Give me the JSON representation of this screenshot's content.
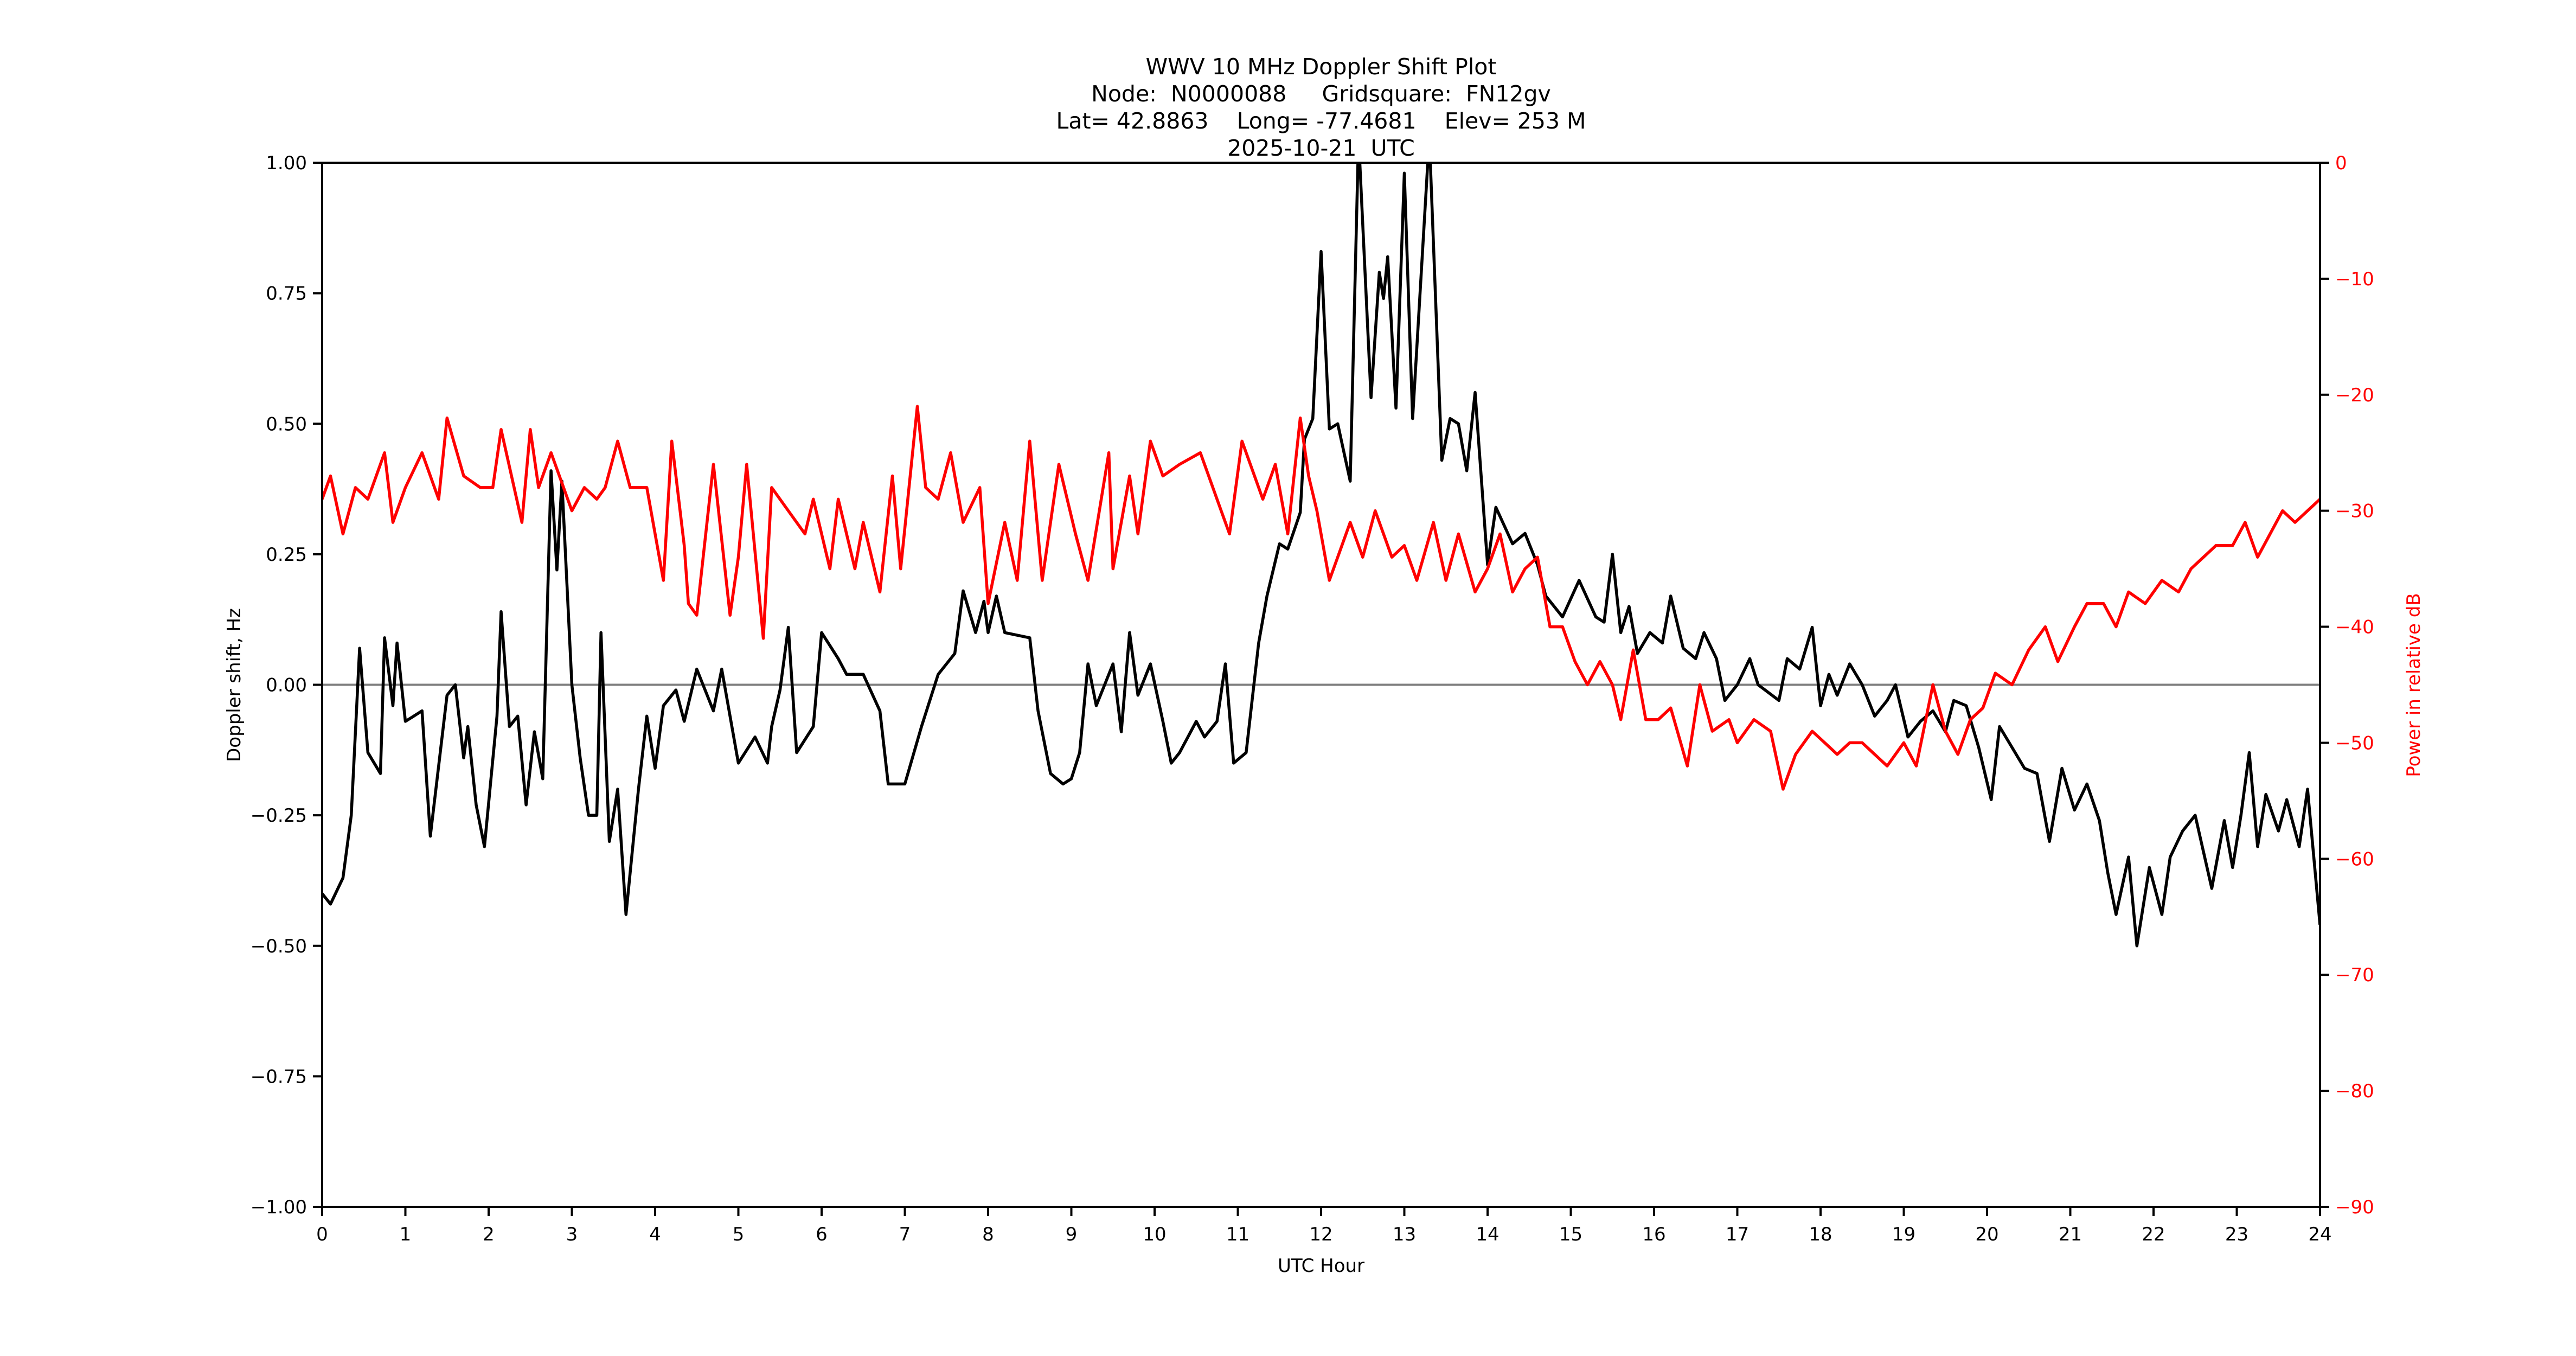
{
  "title": {
    "line1": "WWV 10 MHz Doppler Shift Plot",
    "line2": "Node:  N0000088     Gridsquare:  FN12gv",
    "line3": "Lat= 42.8863    Long= -77.4681    Elev= 253 M",
    "line4": "2025-10-21  UTC"
  },
  "colors": {
    "doppler": "#000000",
    "power": "#ff0000",
    "zero_line": "#808080",
    "axis": "#000000"
  },
  "chart_data": {
    "type": "line",
    "title": "WWV 10 MHz Doppler Shift Plot",
    "subtitle": [
      "Node:  N0000088     Gridsquare:  FN12gv",
      "Lat= 42.8863    Long= -77.4681    Elev= 253 M",
      "2025-10-21  UTC"
    ],
    "xlabel": "UTC Hour",
    "ylabel": "Doppler shift, Hz",
    "y2label": "Power in relative dB",
    "xlim": [
      0,
      24
    ],
    "ylim": [
      -1.0,
      1.0
    ],
    "y2lim": [
      -90,
      0
    ],
    "xticks": [
      "0",
      "1",
      "2",
      "3",
      "4",
      "5",
      "6",
      "7",
      "8",
      "9",
      "10",
      "11",
      "12",
      "13",
      "14",
      "15",
      "16",
      "17",
      "18",
      "19",
      "20",
      "21",
      "22",
      "23",
      "24"
    ],
    "yticks": [
      "1.00",
      "0.75",
      "0.50",
      "0.25",
      "0.00",
      "−0.25",
      "−0.50",
      "−0.75",
      "−1.00"
    ],
    "ytick_values": [
      1.0,
      0.75,
      0.5,
      0.25,
      0.0,
      -0.25,
      -0.5,
      -0.75,
      -1.0
    ],
    "y2ticks": [
      "0",
      "−10",
      "−20",
      "−30",
      "−40",
      "−50",
      "−60",
      "−70",
      "−80",
      "−90"
    ],
    "y2tick_values": [
      0,
      -10,
      -20,
      -30,
      -40,
      -50,
      -60,
      -70,
      -80,
      -90
    ],
    "grid": false,
    "reference_line": {
      "y": 0.0,
      "color": "#808080"
    },
    "series": [
      {
        "name": "Doppler shift, Hz",
        "axis": "left",
        "color": "#000000",
        "x": [
          0,
          0.1,
          0.25,
          0.35,
          0.45,
          0.55,
          0.7,
          0.75,
          0.85,
          0.9,
          1.0,
          1.1,
          1.2,
          1.3,
          1.5,
          1.6,
          1.7,
          1.75,
          1.85,
          1.95,
          2.1,
          2.15,
          2.25,
          2.35,
          2.45,
          2.55,
          2.65,
          2.75,
          2.82,
          2.88,
          3.0,
          3.1,
          3.2,
          3.3,
          3.35,
          3.45,
          3.55,
          3.65,
          3.8,
          3.9,
          4.0,
          4.1,
          4.25,
          4.35,
          4.5,
          4.7,
          4.8,
          5.0,
          5.2,
          5.35,
          5.4,
          5.5,
          5.6,
          5.7,
          5.9,
          6.0,
          6.2,
          6.3,
          6.5,
          6.7,
          6.8,
          7.0,
          7.2,
          7.4,
          7.6,
          7.7,
          7.85,
          7.95,
          8.0,
          8.1,
          8.2,
          8.5,
          8.6,
          8.75,
          8.9,
          9.0,
          9.1,
          9.2,
          9.3,
          9.5,
          9.6,
          9.7,
          9.8,
          9.95,
          10.1,
          10.2,
          10.3,
          10.5,
          10.6,
          10.75,
          10.85,
          10.95,
          11.1,
          11.25,
          11.35,
          11.5,
          11.6,
          11.75,
          11.8,
          11.9,
          12.0,
          12.1,
          12.2,
          12.35,
          12.45,
          12.6,
          12.7,
          12.75,
          12.8,
          12.9,
          13.0,
          13.1,
          13.3,
          13.45,
          13.55,
          13.65,
          13.75,
          13.85,
          14.0,
          14.1,
          14.3,
          14.45,
          14.6,
          14.7,
          14.9,
          15.1,
          15.3,
          15.4,
          15.5,
          15.6,
          15.7,
          15.8,
          15.95,
          16.1,
          16.2,
          16.35,
          16.5,
          16.6,
          16.75,
          16.85,
          17.0,
          17.15,
          17.25,
          17.5,
          17.6,
          17.75,
          17.9,
          18.0,
          18.1,
          18.2,
          18.35,
          18.5,
          18.65,
          18.8,
          18.9,
          19.05,
          19.2,
          19.35,
          19.5,
          19.6,
          19.75,
          19.9,
          20.05,
          20.15,
          20.3,
          20.45,
          20.6,
          20.75,
          20.9,
          21.05,
          21.2,
          21.35,
          21.45,
          21.55,
          21.7,
          21.8,
          21.95,
          22.1,
          22.2,
          22.35,
          22.5,
          22.7,
          22.85,
          22.95,
          23.05,
          23.15,
          23.25,
          23.35,
          23.5,
          23.6,
          23.75,
          23.85,
          24
        ],
        "values": [
          -0.4,
          -0.42,
          -0.37,
          -0.25,
          0.07,
          -0.13,
          -0.17,
          0.09,
          -0.04,
          0.08,
          -0.07,
          -0.06,
          -0.05,
          -0.29,
          -0.02,
          0.0,
          -0.14,
          -0.08,
          -0.23,
          -0.31,
          -0.06,
          0.14,
          -0.08,
          -0.06,
          -0.23,
          -0.09,
          -0.18,
          0.41,
          0.22,
          0.39,
          0.0,
          -0.14,
          -0.25,
          -0.25,
          0.1,
          -0.3,
          -0.2,
          -0.44,
          -0.2,
          -0.06,
          -0.16,
          -0.04,
          -0.01,
          -0.07,
          0.03,
          -0.05,
          0.03,
          -0.15,
          -0.1,
          -0.15,
          -0.08,
          -0.01,
          0.11,
          -0.13,
          -0.08,
          0.1,
          0.05,
          0.02,
          0.02,
          -0.05,
          -0.19,
          -0.19,
          -0.08,
          0.02,
          0.06,
          0.18,
          0.1,
          0.16,
          0.1,
          0.17,
          0.1,
          0.09,
          -0.05,
          -0.17,
          -0.19,
          -0.18,
          -0.13,
          0.04,
          -0.04,
          0.04,
          -0.09,
          0.1,
          -0.02,
          0.04,
          -0.07,
          -0.15,
          -0.13,
          -0.07,
          -0.1,
          -0.07,
          0.04,
          -0.15,
          -0.13,
          0.08,
          0.17,
          0.27,
          0.26,
          0.33,
          0.47,
          0.51,
          0.83,
          0.49,
          0.5,
          0.39,
          1.05,
          0.55,
          0.79,
          0.74,
          0.82,
          0.53,
          0.98,
          0.51,
          1.05,
          0.43,
          0.51,
          0.5,
          0.41,
          0.56,
          0.23,
          0.34,
          0.27,
          0.29,
          0.23,
          0.17,
          0.13,
          0.2,
          0.13,
          0.12,
          0.25,
          0.1,
          0.15,
          0.06,
          0.1,
          0.08,
          0.17,
          0.07,
          0.05,
          0.1,
          0.05,
          -0.03,
          0.0,
          0.05,
          0.0,
          -0.03,
          0.05,
          0.03,
          0.11,
          -0.04,
          0.02,
          -0.02,
          0.04,
          0.0,
          -0.06,
          -0.03,
          0.0,
          -0.1,
          -0.07,
          -0.05,
          -0.09,
          -0.03,
          -0.04,
          -0.12,
          -0.22,
          -0.08,
          -0.12,
          -0.16,
          -0.17,
          -0.3,
          -0.16,
          -0.24,
          -0.19,
          -0.26,
          -0.36,
          -0.44,
          -0.33,
          -0.5,
          -0.35,
          -0.44,
          -0.33,
          -0.28,
          -0.25,
          -0.39,
          -0.26,
          -0.35,
          -0.25,
          -0.13,
          -0.31,
          -0.21,
          -0.28,
          -0.22,
          -0.31,
          -0.2,
          -0.46
        ]
      },
      {
        "name": "Power in relative dB",
        "axis": "right",
        "color": "#ff0000",
        "x": [
          0,
          0.1,
          0.25,
          0.4,
          0.55,
          0.75,
          0.85,
          1.0,
          1.2,
          1.4,
          1.5,
          1.7,
          1.9,
          2.05,
          2.15,
          2.4,
          2.5,
          2.6,
          2.75,
          2.9,
          3.0,
          3.15,
          3.3,
          3.4,
          3.55,
          3.7,
          3.9,
          4.0,
          4.1,
          4.2,
          4.35,
          4.4,
          4.5,
          4.7,
          4.9,
          5.0,
          5.1,
          5.3,
          5.4,
          5.6,
          5.8,
          5.9,
          6.1,
          6.2,
          6.4,
          6.5,
          6.7,
          6.85,
          6.95,
          7.15,
          7.25,
          7.4,
          7.55,
          7.7,
          7.9,
          8.0,
          8.2,
          8.35,
          8.5,
          8.65,
          8.85,
          9.05,
          9.2,
          9.45,
          9.5,
          9.7,
          9.8,
          9.95,
          10.1,
          10.3,
          10.55,
          10.75,
          10.9,
          11.05,
          11.3,
          11.45,
          11.6,
          11.75,
          11.85,
          11.95,
          12.1,
          12.35,
          12.5,
          12.65,
          12.85,
          13.0,
          13.15,
          13.35,
          13.5,
          13.65,
          13.85,
          14.0,
          14.15,
          14.3,
          14.45,
          14.6,
          14.75,
          14.9,
          15.05,
          15.2,
          15.35,
          15.5,
          15.6,
          15.75,
          15.9,
          16.05,
          16.2,
          16.4,
          16.55,
          16.7,
          16.9,
          17.0,
          17.2,
          17.4,
          17.55,
          17.7,
          17.9,
          18.05,
          18.2,
          18.35,
          18.5,
          18.65,
          18.8,
          19.0,
          19.15,
          19.35,
          19.5,
          19.65,
          19.8,
          19.95,
          20.1,
          20.3,
          20.5,
          20.7,
          20.85,
          21.05,
          21.2,
          21.4,
          21.55,
          21.7,
          21.9,
          22.1,
          22.3,
          22.45,
          22.6,
          22.75,
          22.95,
          23.1,
          23.25,
          23.4,
          23.55,
          23.7,
          23.85,
          24
        ],
        "values": [
          -29,
          -27,
          -32,
          -28,
          -29,
          -25,
          -31,
          -28,
          -25,
          -29,
          -22,
          -27,
          -28,
          -28,
          -23,
          -31,
          -23,
          -28,
          -25,
          -28,
          -30,
          -28,
          -29,
          -28,
          -24,
          -28,
          -28,
          -32,
          -36,
          -24,
          -33,
          -38,
          -39,
          -26,
          -39,
          -34,
          -26,
          -41,
          -28,
          -30,
          -32,
          -29,
          -35,
          -29,
          -35,
          -31,
          -37,
          -27,
          -35,
          -21,
          -28,
          -29,
          -25,
          -31,
          -28,
          -38,
          -31,
          -36,
          -24,
          -36,
          -26,
          -32,
          -36,
          -25,
          -35,
          -27,
          -32,
          -24,
          -27,
          -26,
          -25,
          -29,
          -32,
          -24,
          -29,
          -26,
          -32,
          -22,
          -27,
          -30,
          -36,
          -31,
          -34,
          -30,
          -34,
          -33,
          -36,
          -31,
          -36,
          -32,
          -37,
          -35,
          -32,
          -37,
          -35,
          -34,
          -40,
          -40,
          -43,
          -45,
          -43,
          -45,
          -48,
          -42,
          -48,
          -48,
          -47,
          -52,
          -45,
          -49,
          -48,
          -50,
          -48,
          -49,
          -54,
          -51,
          -49,
          -50,
          -51,
          -50,
          -50,
          -51,
          -52,
          -50,
          -52,
          -45,
          -49,
          -51,
          -48,
          -47,
          -44,
          -45,
          -42,
          -40,
          -43,
          -40,
          -38,
          -38,
          -40,
          -37,
          -38,
          -36,
          -37,
          -35,
          -34,
          -33,
          -33,
          -31,
          -34,
          -32,
          -30,
          -31,
          -30,
          -29
        ]
      }
    ]
  }
}
